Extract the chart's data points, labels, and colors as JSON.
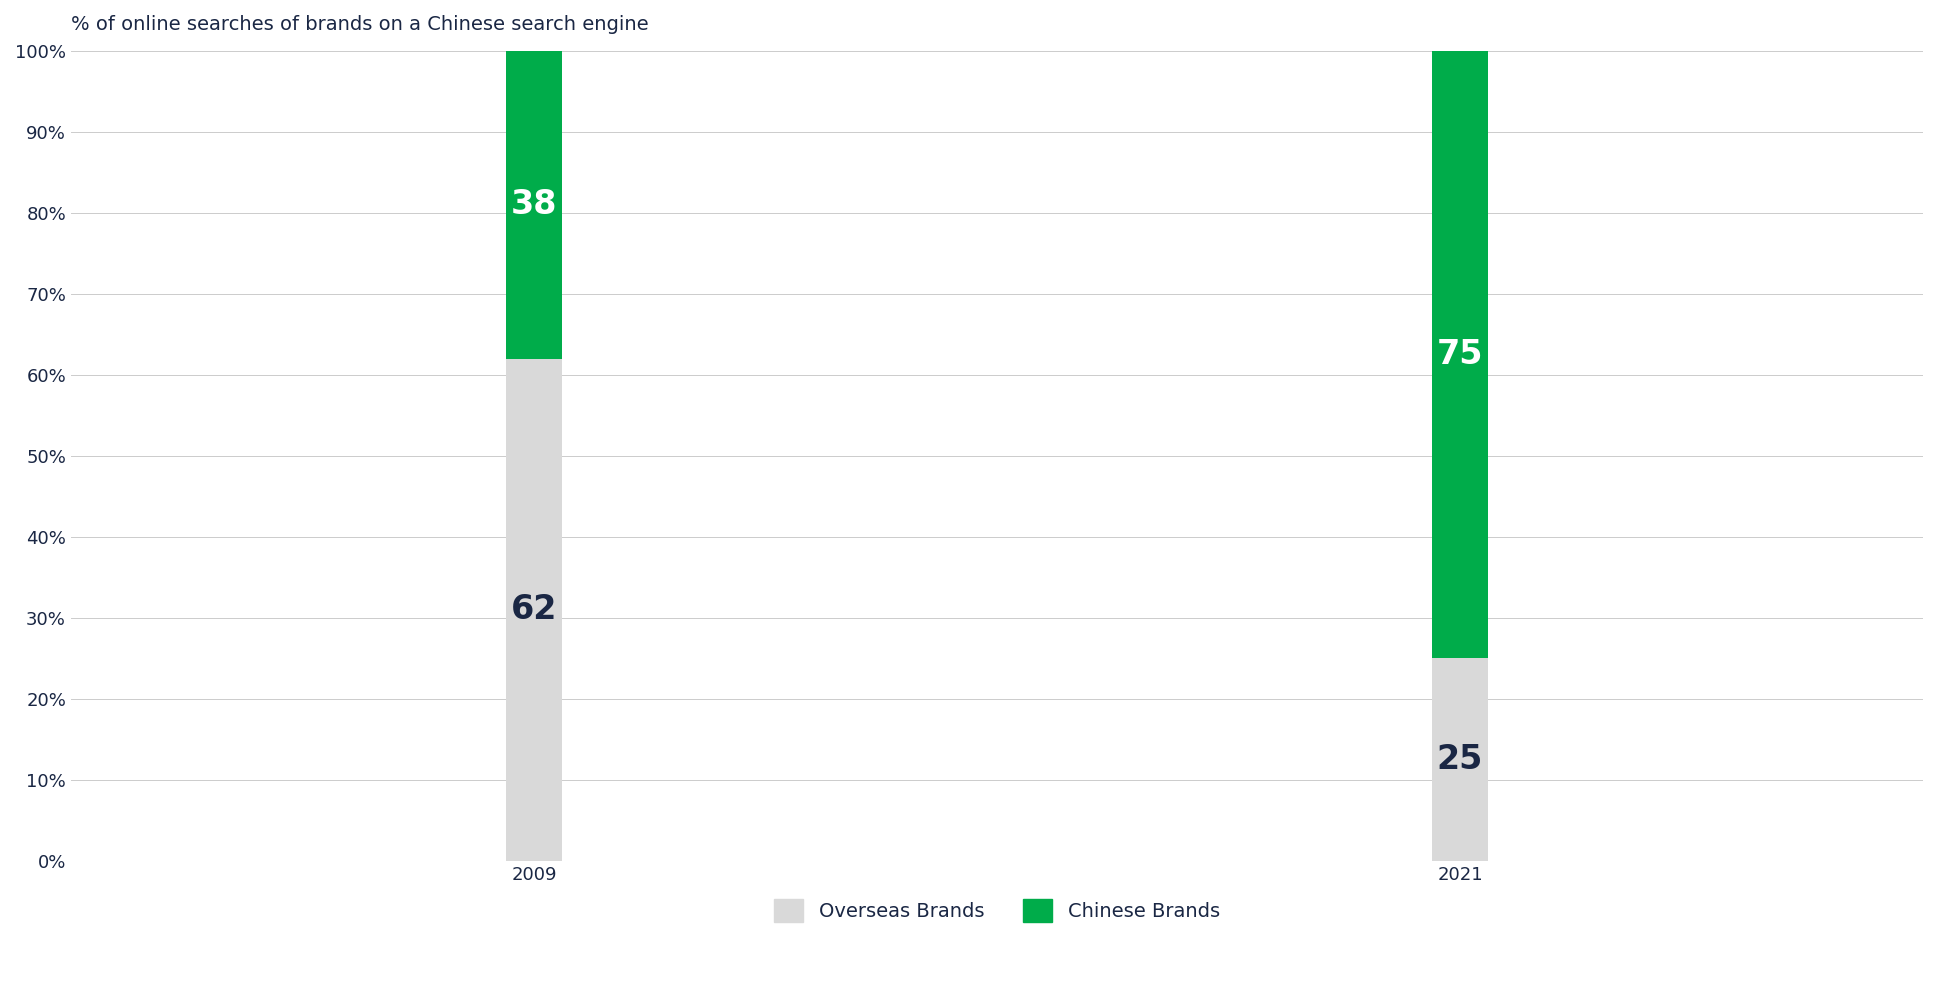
{
  "title": "% of online searches of brands on a Chinese search engine",
  "categories": [
    "2009",
    "2021"
  ],
  "overseas_values": [
    62,
    25
  ],
  "chinese_values": [
    38,
    75
  ],
  "overseas_color": "#d9d9d9",
  "chinese_color": "#00ac4a",
  "overseas_label": "Overseas Brands",
  "chinese_label": "Chinese Brands",
  "bar_width": 0.12,
  "ylim": [
    0,
    100
  ],
  "yticks": [
    0,
    10,
    20,
    30,
    40,
    50,
    60,
    70,
    80,
    90,
    100
  ],
  "ytick_labels": [
    "0%",
    "10%",
    "20%",
    "30%",
    "40%",
    "50%",
    "60%",
    "70%",
    "80%",
    "90%",
    "100%"
  ],
  "title_fontsize": 14,
  "tick_fontsize": 13,
  "label_fontsize": 24,
  "legend_fontsize": 14,
  "value_color_overseas": "#1a2744",
  "value_color_chinese": "#ffffff",
  "background_color": "#ffffff",
  "x_positions": [
    1,
    3
  ],
  "xlim": [
    0,
    4
  ]
}
